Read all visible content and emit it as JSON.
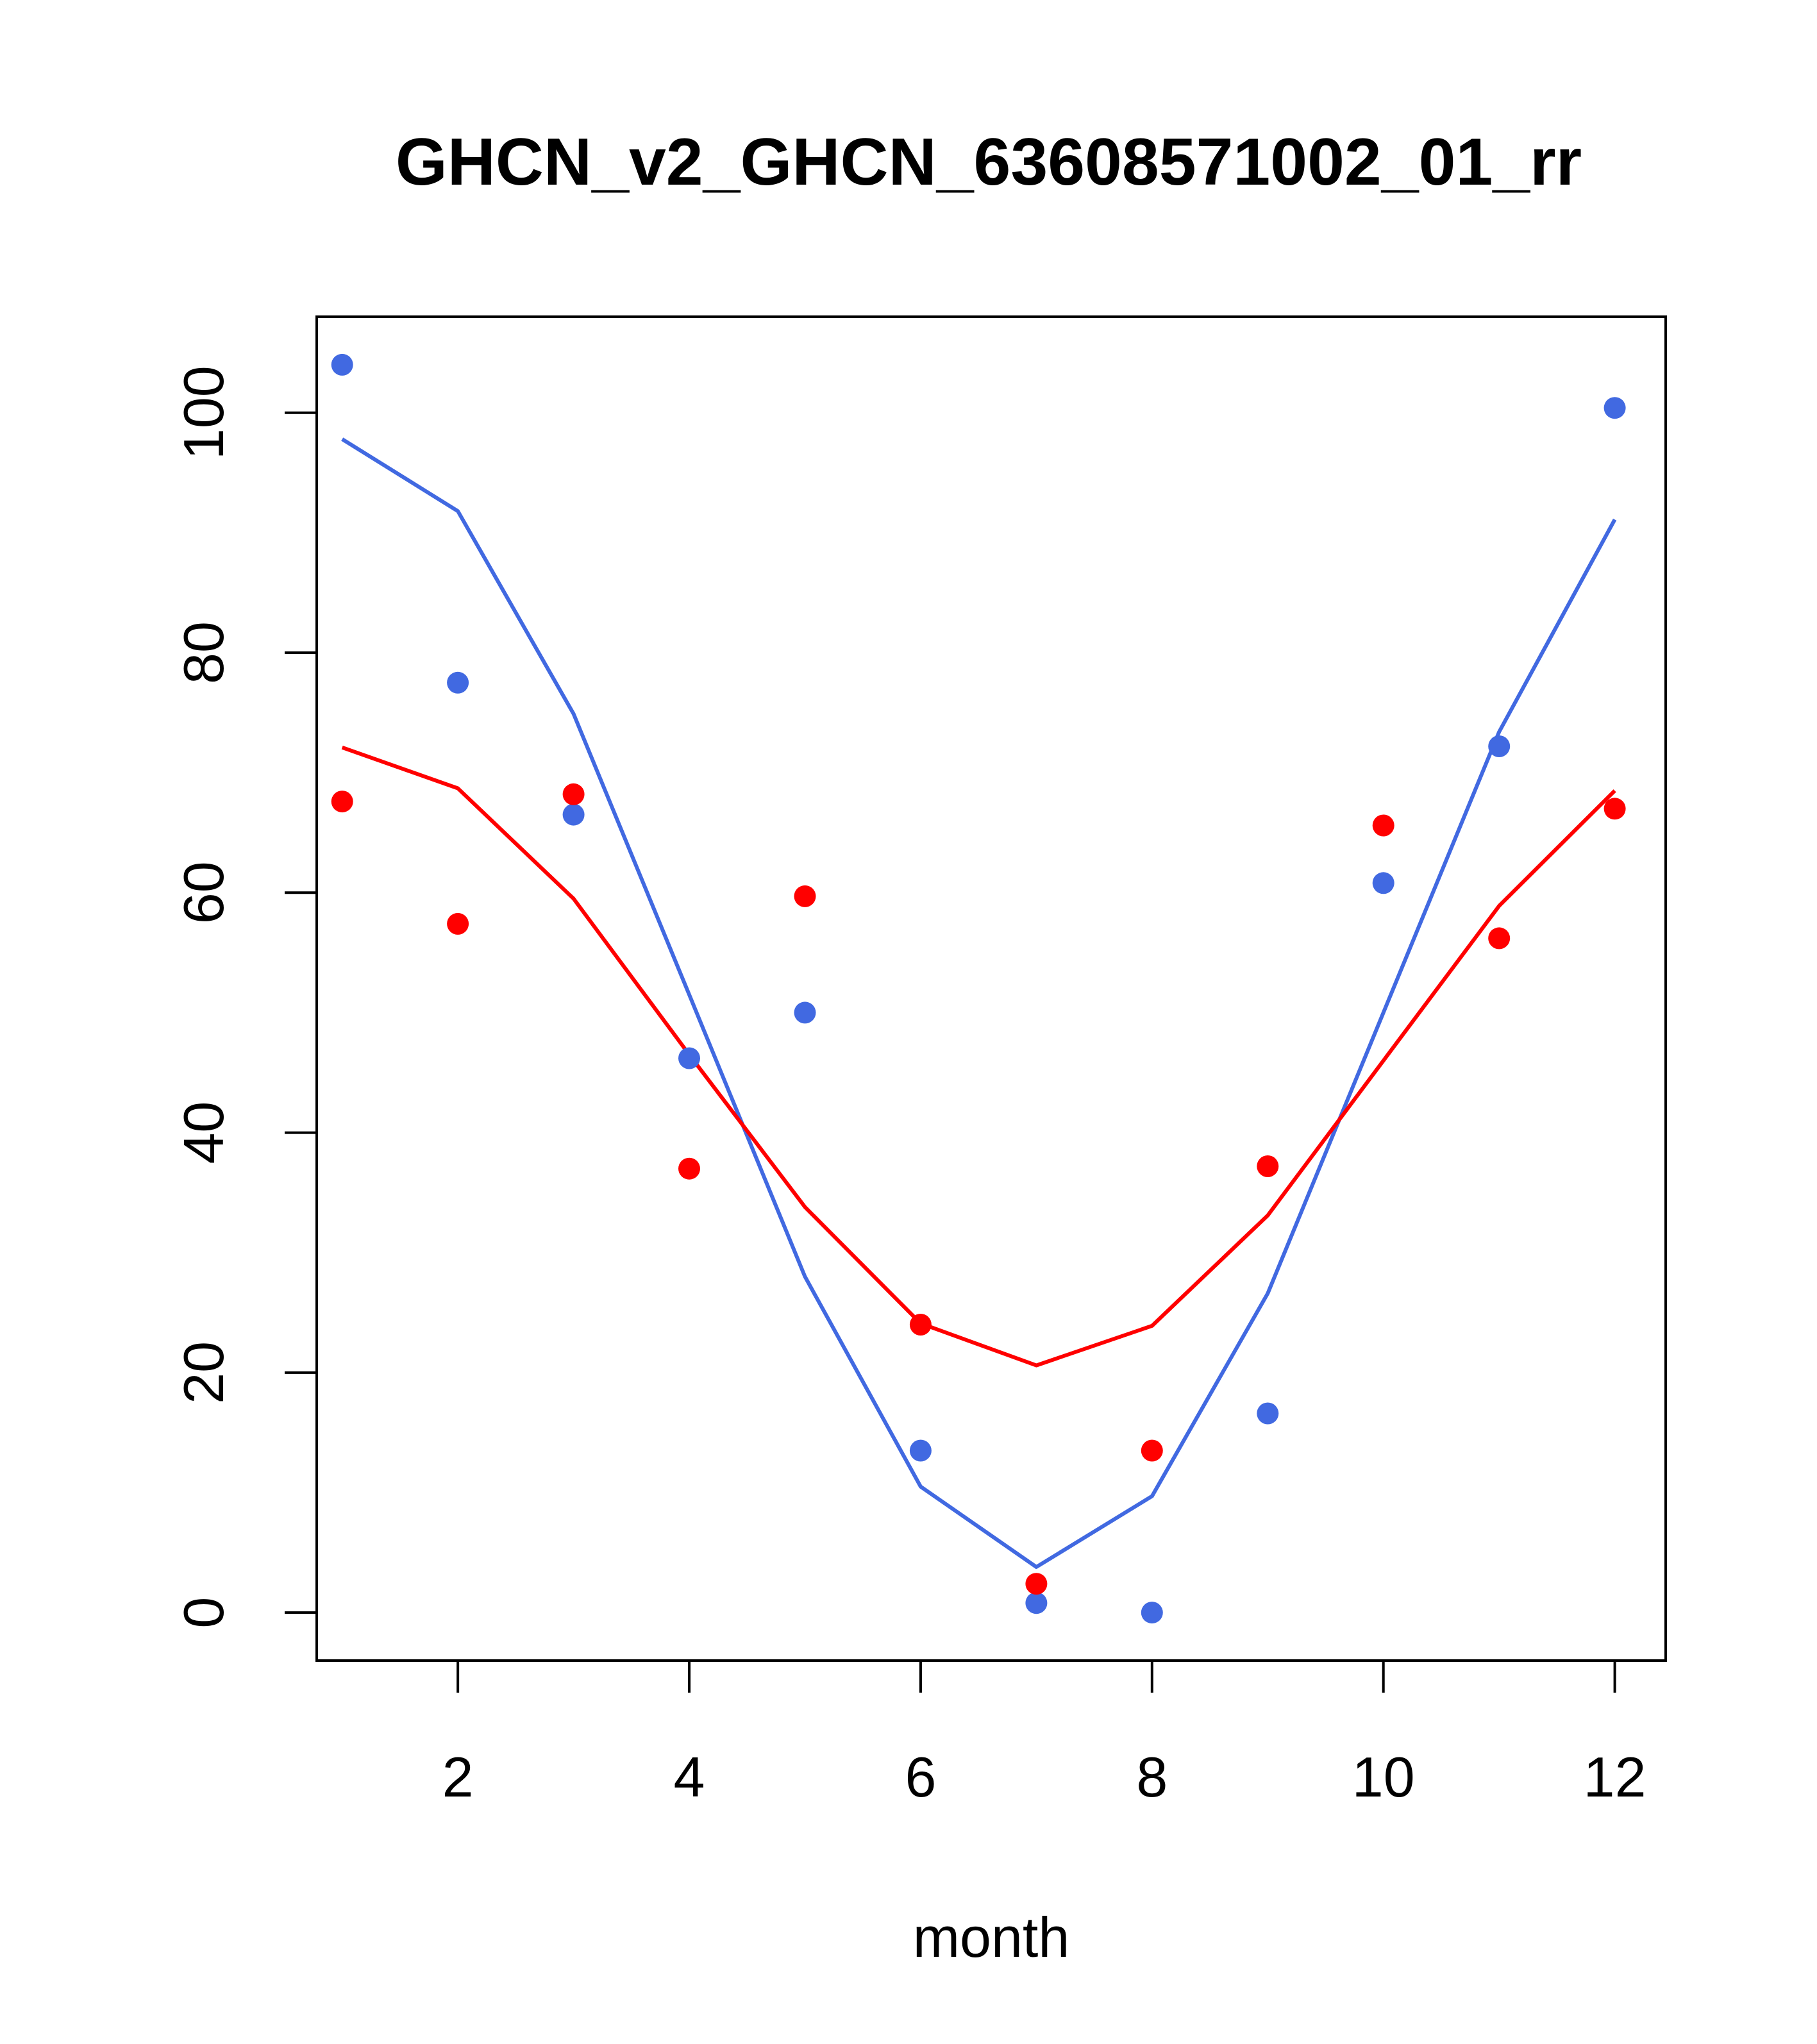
{
  "chart_data": {
    "type": "line",
    "title": "GHCN_v2_GHCN_63608571002_01_rr",
    "xlabel": "month",
    "ylabel": "",
    "xlim": [
      0.78,
      12.44
    ],
    "ylim": [
      -4,
      108
    ],
    "x_ticks": [
      2,
      4,
      6,
      8,
      10,
      12
    ],
    "y_ticks": [
      0,
      20,
      40,
      60,
      80,
      100
    ],
    "grid": false,
    "series": [
      {
        "name": "blue",
        "color": "#4169E1",
        "x": [
          1,
          2,
          3,
          4,
          5,
          6,
          7,
          8,
          9,
          10,
          11,
          12
        ],
        "points": [
          104,
          77.5,
          66.5,
          46.2,
          50,
          13.5,
          0.8,
          0,
          16.6,
          60.8,
          72.2,
          100.4
        ],
        "line": [
          97.8,
          91.8,
          74.9,
          51.5,
          28,
          10.5,
          3.8,
          9.7,
          26.6,
          50,
          73.4,
          91.1
        ]
      },
      {
        "name": "red",
        "color": "#FF0000",
        "x": [
          1,
          2,
          3,
          4,
          5,
          6,
          7,
          8,
          9,
          10,
          11,
          12
        ],
        "points": [
          67.6,
          57.4,
          68.2,
          37,
          59.7,
          24,
          2.4,
          13.5,
          37.2,
          65.6,
          56.2,
          67
        ],
        "line": [
          72.1,
          68.7,
          59.5,
          46.5,
          33.8,
          24.1,
          20.6,
          23.9,
          33.1,
          46,
          58.9,
          68.5
        ]
      }
    ]
  }
}
